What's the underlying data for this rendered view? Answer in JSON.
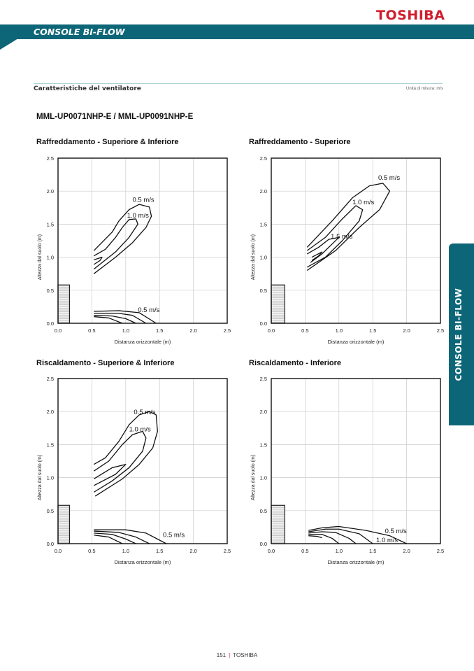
{
  "header": {
    "brand": "TOSHIBA",
    "band_title": "CONSOLE BI-FLOW",
    "accent_color": "#0d6677",
    "brand_color": "#d01e2e"
  },
  "section": {
    "title": "Caratteristiche del ventilatore",
    "unit_note": "Unità di misura: m/s"
  },
  "model": "MML-UP0071NHP-E / MML-UP0091NHP-E",
  "side_tab": "CONSOLE BI-FLOW",
  "footer": {
    "page": "151",
    "brand": "TOSHIBA"
  },
  "chart_data": [
    {
      "type": "line",
      "title": "Raffreddamento - Superiore & Inferiore",
      "xlabel": "Distanza orizzontale (m)",
      "ylabel": "Altezza dal suolo (m)",
      "xlim": [
        0,
        2.5
      ],
      "ylim": [
        0,
        2.5
      ],
      "ticks": [
        "0.0",
        "0.5",
        "1.0",
        "1.5",
        "2.0",
        "2.5"
      ],
      "grid": true,
      "unit_box": {
        "width": 0.17,
        "height": 0.58
      },
      "curves": [
        {
          "points": [
            [
              0.53,
              1.1
            ],
            [
              0.8,
              1.38
            ],
            [
              0.9,
              1.55
            ],
            [
              1.05,
              1.72
            ],
            [
              1.2,
              1.8
            ],
            [
              1.35,
              1.76
            ],
            [
              1.38,
              1.62
            ],
            [
              1.3,
              1.45
            ],
            [
              1.1,
              1.22
            ],
            [
              0.85,
              1.0
            ],
            [
              0.53,
              0.75
            ]
          ]
        },
        {
          "points": [
            [
              0.53,
              1.02
            ],
            [
              0.7,
              1.12
            ],
            [
              0.85,
              1.3
            ],
            [
              0.95,
              1.45
            ],
            [
              1.05,
              1.57
            ],
            [
              1.15,
              1.58
            ],
            [
              1.18,
              1.5
            ],
            [
              1.05,
              1.3
            ],
            [
              0.85,
              1.08
            ],
            [
              0.53,
              0.82
            ]
          ]
        },
        {
          "points": [
            [
              0.53,
              0.96
            ],
            [
              0.65,
              1.0
            ],
            [
              0.62,
              0.95
            ],
            [
              0.53,
              0.89
            ]
          ]
        },
        {
          "points": [
            [
              0.53,
              0.18
            ],
            [
              0.9,
              0.19
            ],
            [
              1.2,
              0.16
            ],
            [
              1.45,
              0.0
            ]
          ]
        },
        {
          "points": [
            [
              0.53,
              0.15
            ],
            [
              0.9,
              0.15
            ],
            [
              1.1,
              0.12
            ],
            [
              1.3,
              0.0
            ]
          ]
        },
        {
          "points": [
            [
              0.53,
              0.12
            ],
            [
              0.8,
              0.11
            ],
            [
              1.0,
              0.07
            ],
            [
              1.15,
              0.0
            ]
          ]
        },
        {
          "points": [
            [
              0.53,
              0.1
            ],
            [
              0.75,
              0.08
            ],
            [
              0.95,
              0.0
            ]
          ]
        }
      ],
      "labels": [
        {
          "text": "0.5 m/s",
          "x": 1.1,
          "y": 1.84
        },
        {
          "text": "1.0 m/s",
          "x": 1.02,
          "y": 1.6
        },
        {
          "text": "0.5 m/s",
          "x": 1.18,
          "y": 0.17
        }
      ]
    },
    {
      "type": "line",
      "title": "Raffreddamento - Superiore",
      "xlabel": "Distanza orizzontale (m)",
      "ylabel": "Altezza dal suolo (m)",
      "xlim": [
        0,
        2.5
      ],
      "ylim": [
        0,
        2.5
      ],
      "ticks": [
        "0.0",
        "0.5",
        "1.0",
        "1.5",
        "2.0",
        "2.5"
      ],
      "grid": true,
      "unit_box": {
        "width": 0.2,
        "height": 0.58
      },
      "curves": [
        {
          "points": [
            [
              0.53,
              1.15
            ],
            [
              0.9,
              1.55
            ],
            [
              1.2,
              1.9
            ],
            [
              1.45,
              2.08
            ],
            [
              1.65,
              2.12
            ],
            [
              1.75,
              2.0
            ],
            [
              1.6,
              1.72
            ],
            [
              1.3,
              1.45
            ],
            [
              0.95,
              1.1
            ],
            [
              0.53,
              0.8
            ]
          ]
        },
        {
          "points": [
            [
              0.53,
              1.1
            ],
            [
              0.8,
              1.3
            ],
            [
              1.05,
              1.58
            ],
            [
              1.25,
              1.78
            ],
            [
              1.35,
              1.72
            ],
            [
              1.3,
              1.55
            ],
            [
              1.05,
              1.25
            ],
            [
              0.8,
              1.0
            ],
            [
              0.53,
              0.85
            ]
          ]
        },
        {
          "points": [
            [
              0.53,
              1.05
            ],
            [
              0.7,
              1.15
            ],
            [
              0.85,
              1.27
            ],
            [
              1.0,
              1.3
            ],
            [
              0.9,
              1.2
            ],
            [
              0.75,
              1.05
            ],
            [
              0.58,
              0.92
            ]
          ]
        },
        {
          "points": [
            [
              0.6,
              1.0
            ],
            [
              0.75,
              1.08
            ],
            [
              0.7,
              1.02
            ],
            [
              0.6,
              0.95
            ]
          ]
        }
      ],
      "labels": [
        {
          "text": "0.5 m/s",
          "x": 1.58,
          "y": 2.17
        },
        {
          "text": "1.0 m/s",
          "x": 1.2,
          "y": 1.8
        },
        {
          "text": "1.5 m/s",
          "x": 0.88,
          "y": 1.28
        }
      ]
    },
    {
      "type": "line",
      "title": "Riscaldamento - Superiore & Inferiore",
      "xlabel": "Distanza orizzontale (m)",
      "ylabel": "Altezza dal suolo (m)",
      "xlim": [
        0,
        2.5
      ],
      "ylim": [
        0,
        2.5
      ],
      "ticks": [
        "0.0",
        "0.5",
        "1.0",
        "1.5",
        "2.0",
        "2.5"
      ],
      "grid": true,
      "unit_box": {
        "width": 0.17,
        "height": 0.58
      },
      "curves": [
        {
          "points": [
            [
              0.53,
              1.2
            ],
            [
              0.7,
              1.3
            ],
            [
              0.9,
              1.55
            ],
            [
              1.05,
              1.8
            ],
            [
              1.2,
              1.95
            ],
            [
              1.35,
              2.0
            ],
            [
              1.45,
              1.95
            ],
            [
              1.47,
              1.7
            ],
            [
              1.4,
              1.45
            ],
            [
              1.2,
              1.2
            ],
            [
              0.95,
              0.98
            ],
            [
              0.55,
              0.72
            ]
          ]
        },
        {
          "points": [
            [
              0.53,
              1.1
            ],
            [
              0.75,
              1.25
            ],
            [
              0.95,
              1.5
            ],
            [
              1.1,
              1.65
            ],
            [
              1.25,
              1.7
            ],
            [
              1.3,
              1.6
            ],
            [
              1.25,
              1.4
            ],
            [
              1.05,
              1.15
            ],
            [
              0.8,
              0.95
            ],
            [
              0.53,
              0.78
            ]
          ]
        },
        {
          "points": [
            [
              0.53,
              0.98
            ],
            [
              0.8,
              1.15
            ],
            [
              1.0,
              1.2
            ],
            [
              0.85,
              1.05
            ],
            [
              0.53,
              0.88
            ]
          ]
        },
        {
          "points": [
            [
              0.53,
              0.21
            ],
            [
              1.0,
              0.21
            ],
            [
              1.3,
              0.16
            ],
            [
              1.6,
              0.0
            ]
          ]
        },
        {
          "points": [
            [
              0.53,
              0.19
            ],
            [
              0.9,
              0.17
            ],
            [
              1.15,
              0.1
            ],
            [
              1.35,
              0.0
            ]
          ]
        },
        {
          "points": [
            [
              0.53,
              0.16
            ],
            [
              0.8,
              0.14
            ],
            [
              1.0,
              0.07
            ],
            [
              1.15,
              0.0
            ]
          ]
        },
        {
          "points": [
            [
              0.53,
              0.13
            ],
            [
              0.75,
              0.1
            ],
            [
              0.95,
              0.0
            ]
          ]
        }
      ],
      "labels": [
        {
          "text": "0.5 m/s",
          "x": 1.12,
          "y": 1.96
        },
        {
          "text": "1.0 m/s",
          "x": 1.05,
          "y": 1.7
        },
        {
          "text": "0.5 m/s",
          "x": 1.55,
          "y": 0.1
        }
      ]
    },
    {
      "type": "line",
      "title": "Riscaldamento - Inferiore",
      "xlabel": "Distanza orizzontale (m)",
      "ylabel": "Altezza dal suolo (m)",
      "xlim": [
        0,
        2.5
      ],
      "ylim": [
        0,
        2.5
      ],
      "ticks": [
        "0.0",
        "0.5",
        "1.0",
        "1.5",
        "2.0",
        "2.5"
      ],
      "grid": true,
      "unit_box": {
        "width": 0.2,
        "height": 0.58
      },
      "curves": [
        {
          "points": [
            [
              0.55,
              0.2
            ],
            [
              0.75,
              0.24
            ],
            [
              1.0,
              0.26
            ],
            [
              1.4,
              0.2
            ],
            [
              1.75,
              0.12
            ],
            [
              2.0,
              0.0
            ]
          ]
        },
        {
          "points": [
            [
              0.55,
              0.18
            ],
            [
              0.8,
              0.22
            ],
            [
              1.0,
              0.22
            ],
            [
              1.3,
              0.15
            ],
            [
              1.5,
              0.0
            ]
          ]
        },
        {
          "points": [
            [
              0.55,
              0.16
            ],
            [
              0.75,
              0.18
            ],
            [
              0.95,
              0.17
            ],
            [
              1.15,
              0.08
            ],
            [
              1.25,
              0.0
            ]
          ]
        },
        {
          "points": [
            [
              0.55,
              0.14
            ],
            [
              0.75,
              0.14
            ],
            [
              0.9,
              0.08
            ],
            [
              1.0,
              0.0
            ]
          ]
        },
        {
          "points": [
            [
              0.55,
              0.12
            ],
            [
              0.68,
              0.11
            ],
            [
              0.75,
              0.09
            ]
          ]
        }
      ],
      "labels": [
        {
          "text": "0.5 m/s",
          "x": 1.68,
          "y": 0.16
        },
        {
          "text": "1.0 m/s",
          "x": 1.55,
          "y": 0.02
        }
      ]
    }
  ]
}
